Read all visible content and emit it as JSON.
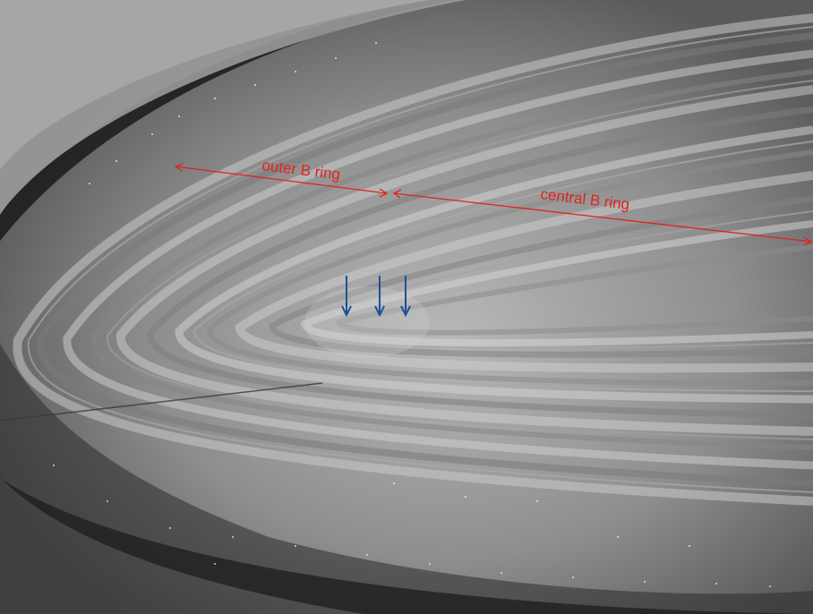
{
  "image": {
    "subject": "Saturn rings photograph",
    "annotation_color": "#e0231c",
    "arrow_color": "#1f4f9a"
  },
  "annotations": {
    "outer_label": "outer B ring",
    "central_label": "central B ring",
    "spoke_arrows": [
      {
        "name": "spoke-arrow-1"
      },
      {
        "name": "spoke-arrow-2"
      },
      {
        "name": "spoke-arrow-3"
      }
    ]
  }
}
